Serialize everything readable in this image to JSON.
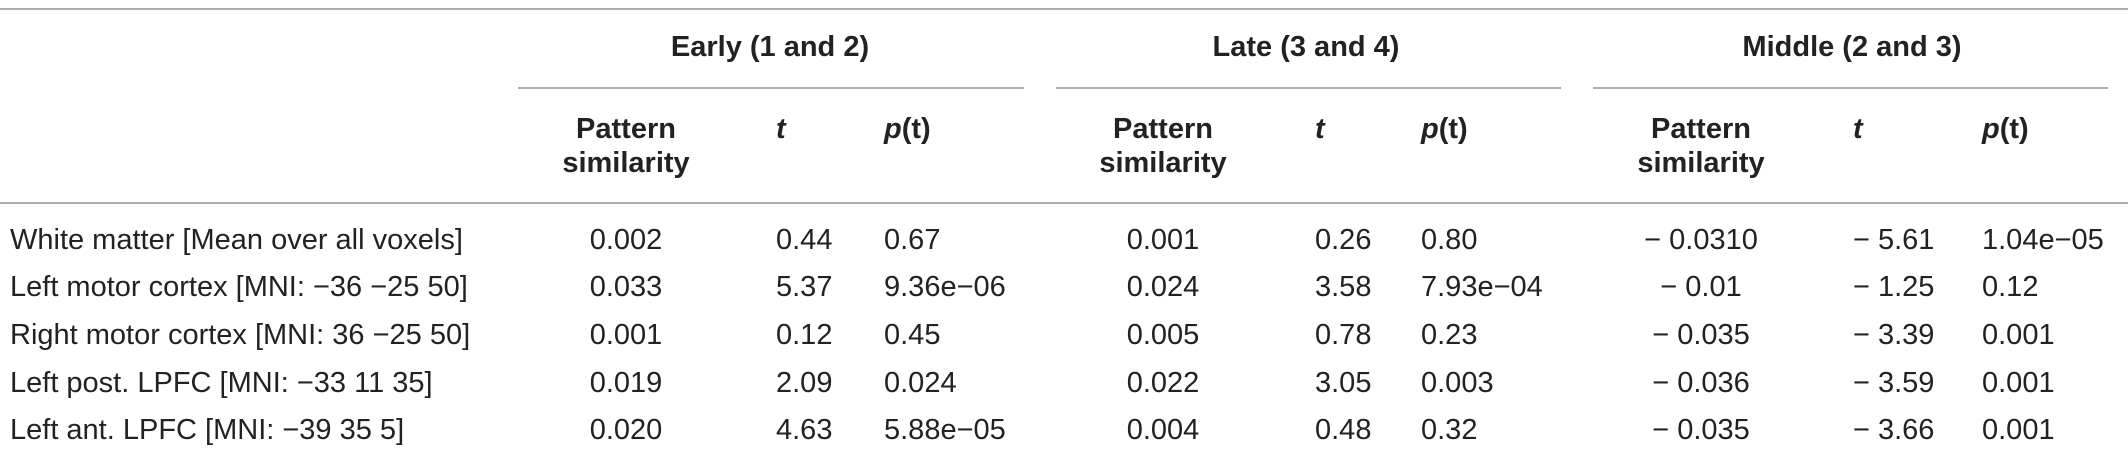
{
  "table": {
    "groups": [
      {
        "label": "Early (1 and 2)"
      },
      {
        "label": "Late (3 and 4)"
      },
      {
        "label": "Middle (2 and 3)"
      }
    ],
    "subheaders": {
      "pattern_line1": "Pattern",
      "pattern_line2": "similarity",
      "t": "t",
      "p_italic": "p",
      "p_suffix": "(t)"
    },
    "rows": [
      {
        "label": "White matter [Mean over all voxels]",
        "cells": [
          "0.002",
          "0.44",
          "0.67",
          "0.001",
          "0.26",
          "0.80",
          "− 0.0310",
          "− 5.61",
          "1.04e−05"
        ]
      },
      {
        "label": "Left motor cortex [MNI: −36 −25 50]",
        "cells": [
          "0.033",
          "5.37",
          "9.36e−06",
          "0.024",
          "3.58",
          "7.93e−04",
          "− 0.01",
          "− 1.25",
          "0.12"
        ]
      },
      {
        "label": "Right motor cortex [MNI: 36 −25 50]",
        "cells": [
          "0.001",
          "0.12",
          "0.45",
          "0.005",
          "0.78",
          "0.23",
          "− 0.035",
          "− 3.39",
          "0.001"
        ]
      },
      {
        "label": "Left post. LPFC [MNI: −33 11 35]",
        "cells": [
          "0.019",
          "2.09",
          "0.024",
          "0.022",
          "3.05",
          "0.003",
          "− 0.036",
          "− 3.59",
          "0.001"
        ]
      },
      {
        "label": "Left ant. LPFC [MNI: −39 35 5]",
        "cells": [
          "0.020",
          "4.63",
          "5.88e−05",
          "0.004",
          "0.48",
          "0.32",
          "− 0.035",
          "− 3.66",
          "0.001"
        ]
      }
    ]
  }
}
